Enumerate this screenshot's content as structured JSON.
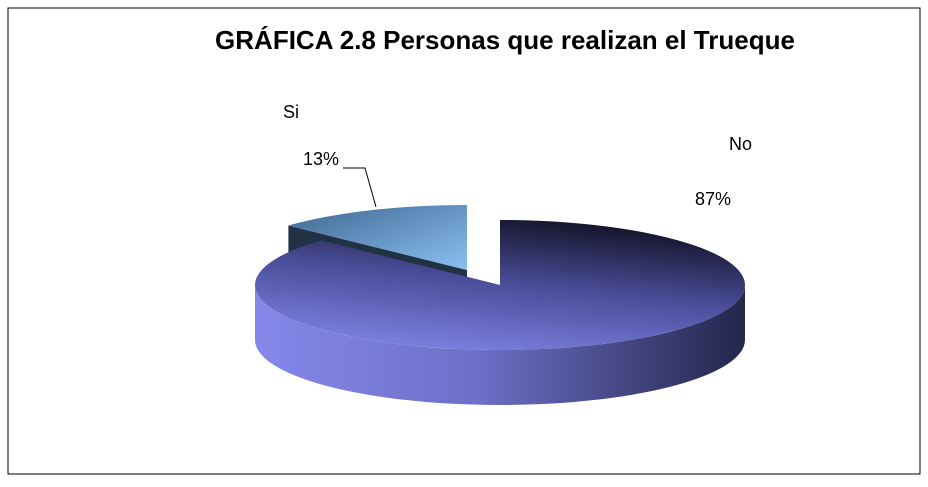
{
  "chart_data": {
    "type": "pie",
    "title": "GRÁFICA 2.8 Personas que realizan el Trueque",
    "categories": [
      "No",
      "Si"
    ],
    "values": [
      87,
      13
    ],
    "value_labels": [
      "87%",
      "13%"
    ],
    "colors": [
      "#7f83e6",
      "#7ab0e6"
    ],
    "three_d": true
  }
}
